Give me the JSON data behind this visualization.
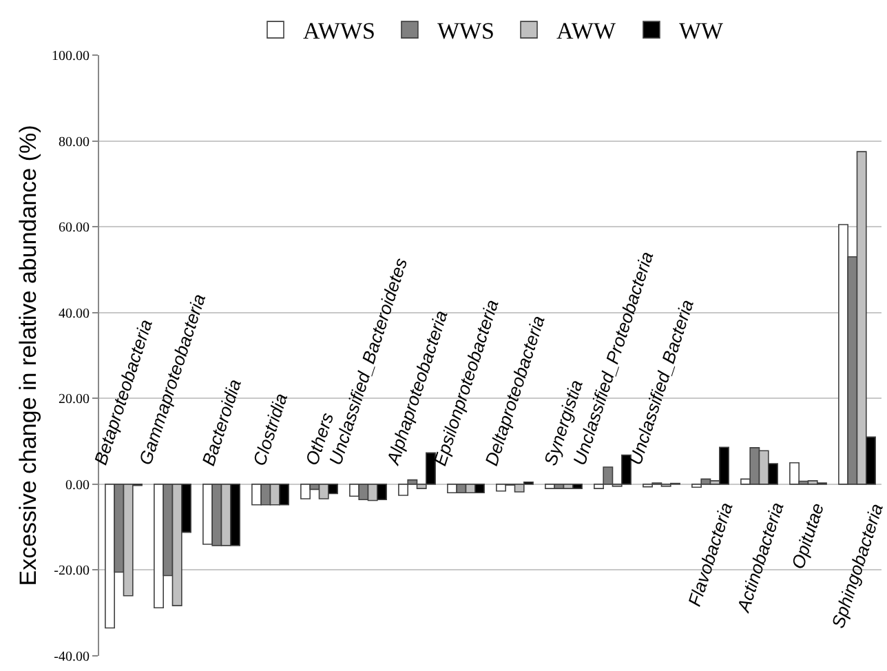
{
  "chart_data": {
    "type": "bar",
    "ylabel": "Excessive change in relative abundance (%)",
    "categories": [
      "Betaproteobacteria",
      "Gammaproteobacteria",
      "Bacteroidia",
      "Clostridia",
      "Others",
      "Unclassified_Bacteroidetes",
      "Alphaproteobacteria",
      "Epsilonproteobacteria",
      "Deltaproteobacteria",
      "Synergistia",
      "Unclassified_Proteobacteria",
      "Unclassified_Bacteria",
      "Flavobacteria",
      "Actinobacteria",
      "Opitutae",
      "Sphingobacteria"
    ],
    "series": [
      {
        "name": "AWWS",
        "color": "#ffffff",
        "values": [
          -33.5,
          -28.8,
          -14,
          -4.8,
          -3.4,
          -2.8,
          -2.6,
          -2,
          -1.6,
          -1,
          -1,
          -0.6,
          -0.7,
          1.2,
          5,
          60.5
        ]
      },
      {
        "name": "WWS",
        "color": "#808080",
        "values": [
          -20.5,
          -21.3,
          -14.3,
          -4.8,
          -1.2,
          -3.6,
          1,
          -2,
          -0.2,
          -1,
          4,
          0.3,
          1.2,
          8.5,
          0.7,
          53
        ]
      },
      {
        "name": "AWW",
        "color": "#c0c0c0",
        "values": [
          -26,
          -28.3,
          -14.3,
          -4.8,
          -3.4,
          -3.8,
          -1,
          -2,
          -1.8,
          -1,
          -0.5,
          -0.5,
          0.8,
          7.8,
          0.8,
          77.5
        ]
      },
      {
        "name": "WW",
        "color": "#000000",
        "values": [
          -0.3,
          -11.2,
          -14.3,
          -4.8,
          -2.2,
          -3.6,
          7.3,
          -2,
          0.5,
          -1,
          6.8,
          0.2,
          8.6,
          4.8,
          0.3,
          11
        ]
      }
    ],
    "ylim": [
      -40,
      100
    ],
    "yticks": [
      {
        "value": -40,
        "label": "-40.00"
      },
      {
        "value": -20,
        "label": "-20.00"
      },
      {
        "value": 0,
        "label": "0.00"
      },
      {
        "value": 20,
        "label": "20.00"
      },
      {
        "value": 40,
        "label": "40.00"
      },
      {
        "value": 60,
        "label": "60.00"
      },
      {
        "value": 80,
        "label": "80.00"
      },
      {
        "value": 100,
        "label": "100.00"
      }
    ],
    "grid": "y",
    "legend": "top",
    "tick_labels": "y"
  }
}
